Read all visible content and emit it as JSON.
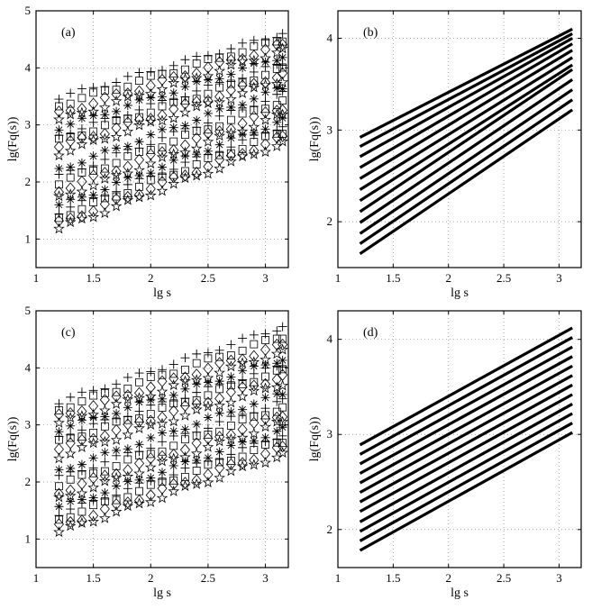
{
  "figure": {
    "x_max": 3.2
  },
  "chart_data": [
    {
      "type": "scatter",
      "panel_label": "(a)",
      "xlabel": "lg s",
      "ylabel": "lg(Fq(s))",
      "xlim": [
        1,
        3.2
      ],
      "ylim": [
        0.5,
        5
      ],
      "xticks": [
        1,
        1.5,
        2,
        2.5,
        3
      ],
      "xtick_labels": [
        "1",
        "1.5",
        "2",
        "2.5",
        "3"
      ],
      "yticks": [
        1,
        2,
        3,
        4,
        5
      ],
      "ytick_labels": [
        "1",
        "2",
        "3",
        "4",
        "5"
      ],
      "grid": true,
      "x": [
        1.2,
        1.3,
        1.4,
        1.5,
        1.6,
        1.7,
        1.8,
        1.9,
        2.0,
        2.1,
        2.2,
        2.3,
        2.4,
        2.5,
        2.6,
        2.7,
        2.8,
        2.9,
        3.0,
        3.1,
        3.15
      ],
      "markers": [
        "star",
        "diamond",
        "square",
        "plus",
        "asterisk"
      ],
      "series": [
        {
          "start": 1.18,
          "end": 2.68
        },
        {
          "start": 1.28,
          "end": 2.78
        },
        {
          "start": 1.38,
          "end": 2.88
        },
        {
          "start": 1.48,
          "end": 2.98
        },
        {
          "start": 1.58,
          "end": 3.08
        },
        {
          "start": 1.72,
          "end": 3.18
        },
        {
          "start": 1.85,
          "end": 3.3
        },
        {
          "start": 1.98,
          "end": 3.42
        },
        {
          "start": 2.1,
          "end": 3.55
        },
        {
          "start": 2.22,
          "end": 3.65
        },
        {
          "start": 2.5,
          "end": 3.78
        },
        {
          "start": 2.62,
          "end": 3.88
        },
        {
          "start": 2.72,
          "end": 3.98
        },
        {
          "start": 2.82,
          "end": 4.08
        },
        {
          "start": 2.95,
          "end": 4.2
        },
        {
          "start": 3.08,
          "end": 4.3
        },
        {
          "start": 3.2,
          "end": 4.4
        },
        {
          "start": 3.35,
          "end": 4.5
        },
        {
          "start": 3.48,
          "end": 4.6
        }
      ]
    },
    {
      "type": "line",
      "panel_label": "(b)",
      "xlabel": "lg s",
      "ylabel": "lg(Fq(s))",
      "xlim": [
        1,
        3.2
      ],
      "ylim": [
        1.5,
        4.3
      ],
      "xticks": [
        1,
        1.5,
        2,
        2.5,
        3
      ],
      "xtick_labels": [
        "1",
        "1.5",
        "2",
        "2.5",
        "3"
      ],
      "yticks": [
        2,
        3,
        4
      ],
      "ytick_labels": [
        "2",
        "3",
        "4"
      ],
      "grid": true,
      "x": [
        1.2,
        3.12
      ],
      "series": [
        {
          "start": 1.65,
          "end": 3.22
        },
        {
          "start": 1.76,
          "end": 3.33
        },
        {
          "start": 1.87,
          "end": 3.44
        },
        {
          "start": 1.99,
          "end": 3.55
        },
        {
          "start": 2.11,
          "end": 3.66
        },
        {
          "start": 2.23,
          "end": 3.71
        },
        {
          "start": 2.35,
          "end": 3.79
        },
        {
          "start": 2.47,
          "end": 3.87
        },
        {
          "start": 2.59,
          "end": 3.94
        },
        {
          "start": 2.71,
          "end": 4.0
        },
        {
          "start": 2.82,
          "end": 4.05
        },
        {
          "start": 2.92,
          "end": 4.1
        }
      ]
    },
    {
      "type": "scatter",
      "panel_label": "(c)",
      "xlabel": "lg s",
      "ylabel": "lg(Fq(s))",
      "xlim": [
        1,
        3.2
      ],
      "ylim": [
        0.5,
        5
      ],
      "xticks": [
        1,
        1.5,
        2,
        2.5,
        3
      ],
      "xtick_labels": [
        "1",
        "1.5",
        "2",
        "2.5",
        "3"
      ],
      "yticks": [
        1,
        2,
        3,
        4,
        5
      ],
      "ytick_labels": [
        "1",
        "2",
        "3",
        "4",
        "5"
      ],
      "grid": true,
      "x": [
        1.2,
        1.3,
        1.4,
        1.5,
        1.6,
        1.7,
        1.8,
        1.9,
        2.0,
        2.1,
        2.2,
        2.3,
        2.4,
        2.5,
        2.6,
        2.7,
        2.8,
        2.9,
        3.0,
        3.1,
        3.15
      ],
      "markers": [
        "star",
        "diamond",
        "square",
        "plus",
        "asterisk"
      ],
      "series": [
        {
          "start": 1.12,
          "end": 2.48
        },
        {
          "start": 1.22,
          "end": 2.6
        },
        {
          "start": 1.35,
          "end": 2.72
        },
        {
          "start": 1.45,
          "end": 2.82
        },
        {
          "start": 1.55,
          "end": 2.92
        },
        {
          "start": 1.7,
          "end": 3.05
        },
        {
          "start": 1.82,
          "end": 3.18
        },
        {
          "start": 1.95,
          "end": 3.3
        },
        {
          "start": 2.08,
          "end": 3.42
        },
        {
          "start": 2.2,
          "end": 3.55
        },
        {
          "start": 2.45,
          "end": 3.72
        },
        {
          "start": 2.58,
          "end": 3.85
        },
        {
          "start": 2.7,
          "end": 3.95
        },
        {
          "start": 2.8,
          "end": 4.05
        },
        {
          "start": 2.92,
          "end": 4.15
        },
        {
          "start": 3.02,
          "end": 4.28
        },
        {
          "start": 3.15,
          "end": 4.4
        },
        {
          "start": 3.28,
          "end": 4.55
        },
        {
          "start": 3.4,
          "end": 4.72
        }
      ]
    },
    {
      "type": "line",
      "panel_label": "(d)",
      "xlabel": "lg s",
      "ylabel": "lg(Fq(s))",
      "xlim": [
        1,
        3.2
      ],
      "ylim": [
        1.6,
        4.3
      ],
      "xticks": [
        1,
        1.5,
        2,
        2.5,
        3
      ],
      "xtick_labels": [
        "1",
        "1.5",
        "2",
        "2.5",
        "3"
      ],
      "yticks": [
        2,
        3,
        4
      ],
      "ytick_labels": [
        "2",
        "3",
        "4"
      ],
      "grid": true,
      "x": [
        1.2,
        3.12
      ],
      "series": [
        {
          "start": 1.78,
          "end": 3.02
        },
        {
          "start": 1.88,
          "end": 3.12
        },
        {
          "start": 1.98,
          "end": 3.22
        },
        {
          "start": 2.08,
          "end": 3.32
        },
        {
          "start": 2.19,
          "end": 3.42
        },
        {
          "start": 2.29,
          "end": 3.52
        },
        {
          "start": 2.39,
          "end": 3.62
        },
        {
          "start": 2.49,
          "end": 3.72
        },
        {
          "start": 2.59,
          "end": 3.82
        },
        {
          "start": 2.69,
          "end": 3.92
        },
        {
          "start": 2.79,
          "end": 4.02
        },
        {
          "start": 2.89,
          "end": 4.12
        }
      ]
    }
  ]
}
